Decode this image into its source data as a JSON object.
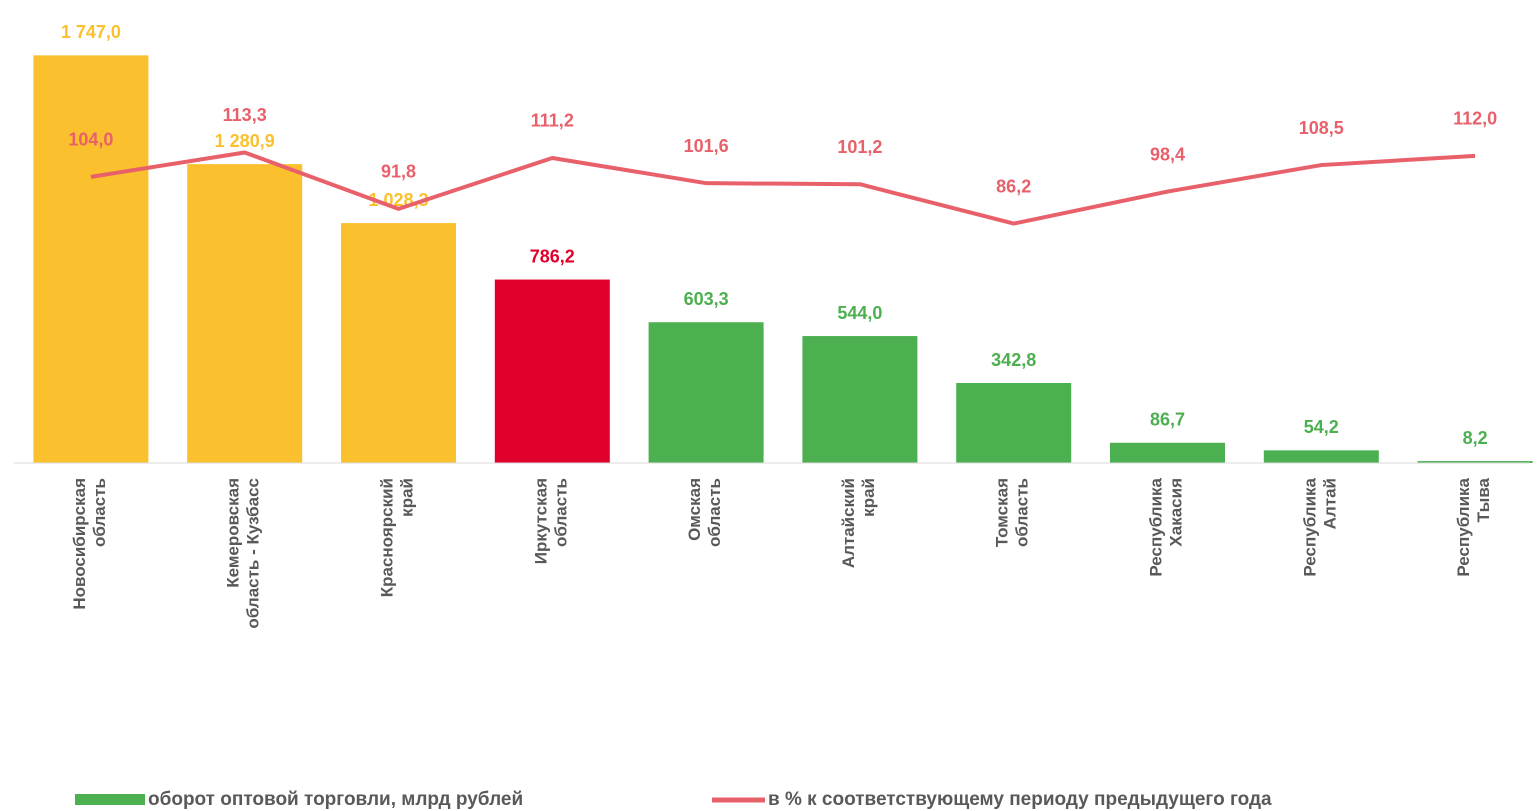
{
  "chart_data": {
    "type": "bar",
    "categories": [
      "Новосибирская\nобласть",
      "Кемеровская\nобласть - Кузбасс",
      "Красноярский\nкрай",
      "Иркутская\nобласть",
      "Омская\nобласть",
      "Алтайский\nкрай",
      "Томская\nобласть",
      "Республика\nХакасия",
      "Республика\nАлтай",
      "Республика\nТыва"
    ],
    "series": [
      {
        "name": "оборот оптовой торговли, млрд рублей",
        "type": "bar",
        "color": "#4caf50",
        "colors": [
          "#fbc02d",
          "#fbc02d",
          "#fbc02d",
          "#e0002b",
          "#4caf50",
          "#4caf50",
          "#4caf50",
          "#4caf50",
          "#4caf50",
          "#4caf50"
        ],
        "values": [
          1747.0,
          1280.9,
          1028.3,
          786.2,
          603.3,
          544.0,
          342.8,
          86.7,
          54.2,
          8.2
        ],
        "value_labels": [
          "1 747,0",
          "1 280,9",
          "1 028,3",
          "786,2",
          "603,3",
          "544,0",
          "342,8",
          "86,7",
          "54,2",
          "8,2"
        ]
      },
      {
        "name": "в % к соответствующему периоду предыдущего года",
        "type": "line",
        "axis": "y2",
        "color": "#e8606a",
        "values": [
          104.0,
          113.3,
          91.8,
          111.2,
          101.6,
          101.2,
          86.2,
          98.4,
          108.5,
          112.0
        ],
        "value_labels": [
          "104,0",
          "113,3",
          "91,8",
          "111,2",
          "101,6",
          "101,2",
          "86,2",
          "98,4",
          "108,5",
          "112,0"
        ]
      }
    ],
    "ylim": [
      0,
      1800
    ],
    "y2lim": [
      -5,
      155
    ],
    "legend": "bottom"
  }
}
